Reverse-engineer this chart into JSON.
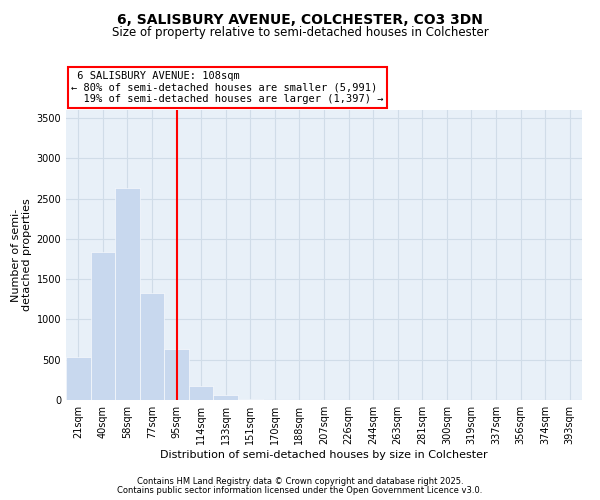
{
  "title": "6, SALISBURY AVENUE, COLCHESTER, CO3 3DN",
  "subtitle": "Size of property relative to semi-detached houses in Colchester",
  "xlabel": "Distribution of semi-detached houses by size in Colchester",
  "ylabel": "Number of semi-\ndetached properties",
  "categories": [
    "21sqm",
    "40sqm",
    "58sqm",
    "77sqm",
    "95sqm",
    "114sqm",
    "133sqm",
    "151sqm",
    "170sqm",
    "188sqm",
    "207sqm",
    "226sqm",
    "244sqm",
    "263sqm",
    "281sqm",
    "300sqm",
    "319sqm",
    "337sqm",
    "356sqm",
    "374sqm",
    "393sqm"
  ],
  "values": [
    530,
    1840,
    2630,
    1330,
    630,
    180,
    60,
    15,
    5,
    2,
    1,
    1,
    0,
    0,
    0,
    0,
    0,
    0,
    0,
    0,
    0
  ],
  "bar_color": "#c8d8ee",
  "property_line_x": 4,
  "property_label": "6 SALISBURY AVENUE: 108sqm",
  "pct_smaller": 80,
  "count_smaller": 5991,
  "pct_larger": 19,
  "count_larger": 1397,
  "ylim": [
    0,
    3600
  ],
  "yticks": [
    0,
    500,
    1000,
    1500,
    2000,
    2500,
    3000,
    3500
  ],
  "grid_color": "#d0dce8",
  "bg_color": "#e8f0f8",
  "footer1": "Contains HM Land Registry data © Crown copyright and database right 2025.",
  "footer2": "Contains public sector information licensed under the Open Government Licence v3.0.",
  "title_fontsize": 10,
  "subtitle_fontsize": 8.5,
  "label_fontsize": 8,
  "annot_fontsize": 7.5,
  "tick_fontsize": 7
}
